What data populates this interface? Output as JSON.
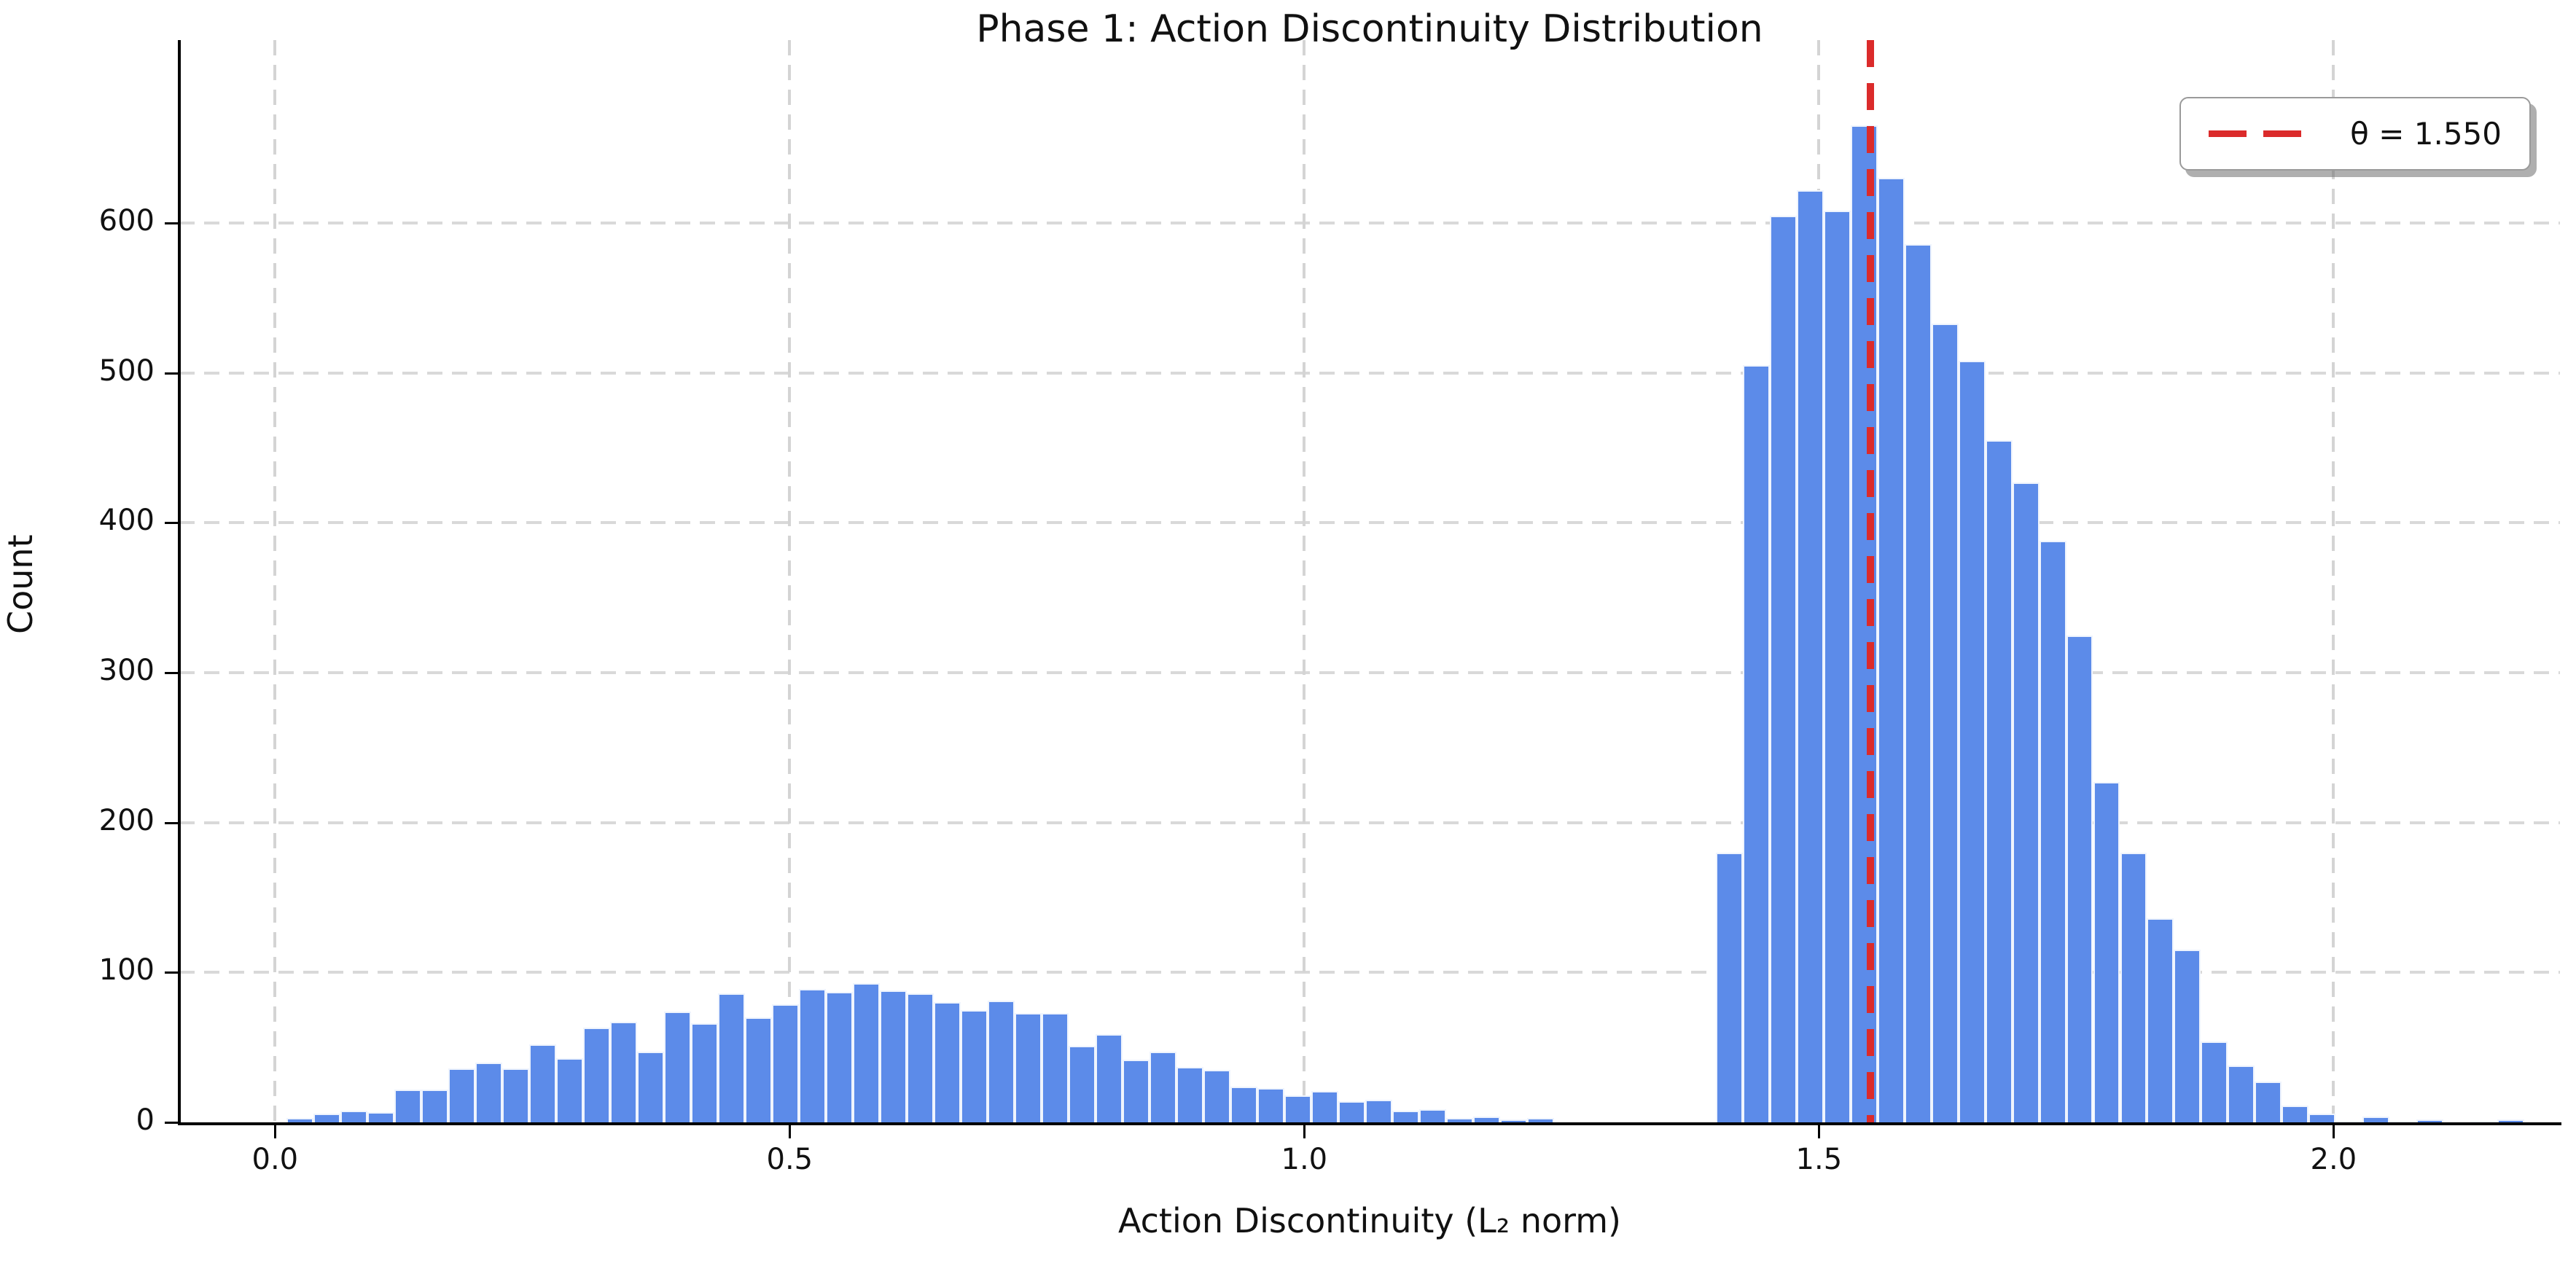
{
  "title": "Phase 1: Action Discontinuity Distribution",
  "xlabel": "Action Discontinuity (L₂ norm)",
  "ylabel": "Count",
  "legend": {
    "label": "θ = 1.550"
  },
  "colors": {
    "bar_fill": "#5c8be9",
    "bar_edge": "#ffffff",
    "threshold_line": "#db2b2b",
    "grid": "#d9d9d9",
    "axis": "#000000",
    "background": "#ffffff",
    "text": "#111111"
  },
  "chart_data": {
    "type": "bar",
    "subtype": "histogram",
    "title": "Phase 1: Action Discontinuity Distribution",
    "xlabel": "Action Discontinuity (L₂ norm)",
    "ylabel": "Count",
    "bin_start": 0.011,
    "bin_width": 0.0262,
    "counts": [
      3,
      6,
      8,
      7,
      22,
      22,
      36,
      40,
      36,
      52,
      43,
      63,
      67,
      47,
      74,
      66,
      86,
      70,
      79,
      89,
      87,
      93,
      88,
      86,
      80,
      75,
      81,
      73,
      73,
      51,
      59,
      42,
      47,
      37,
      35,
      24,
      23,
      18,
      21,
      14,
      15,
      8,
      9,
      3,
      4,
      2,
      3,
      0,
      0,
      0,
      0,
      0,
      0,
      180,
      505,
      605,
      622,
      608,
      665,
      630,
      586,
      533,
      508,
      455,
      427,
      388,
      325,
      227,
      180,
      136,
      115,
      54,
      38,
      27,
      11,
      6,
      1,
      4,
      1,
      2,
      0,
      1,
      2
    ],
    "threshold_value": 1.55,
    "threshold_label": "θ = 1.550",
    "x_ticks": [
      0.0,
      0.5,
      1.0,
      1.5,
      2.0
    ],
    "x_tick_labels": [
      "0.0",
      "0.5",
      "1.0",
      "1.5",
      "2.0"
    ],
    "y_ticks": [
      0,
      100,
      200,
      300,
      400,
      500,
      600
    ],
    "y_tick_labels": [
      "0",
      "100",
      "200",
      "300",
      "400",
      "500",
      "600"
    ],
    "xlim": [
      -0.093,
      2.22
    ],
    "ylim": [
      0,
      722
    ],
    "grid": true,
    "grid_style": "dashed",
    "legend_position": "upper right"
  }
}
